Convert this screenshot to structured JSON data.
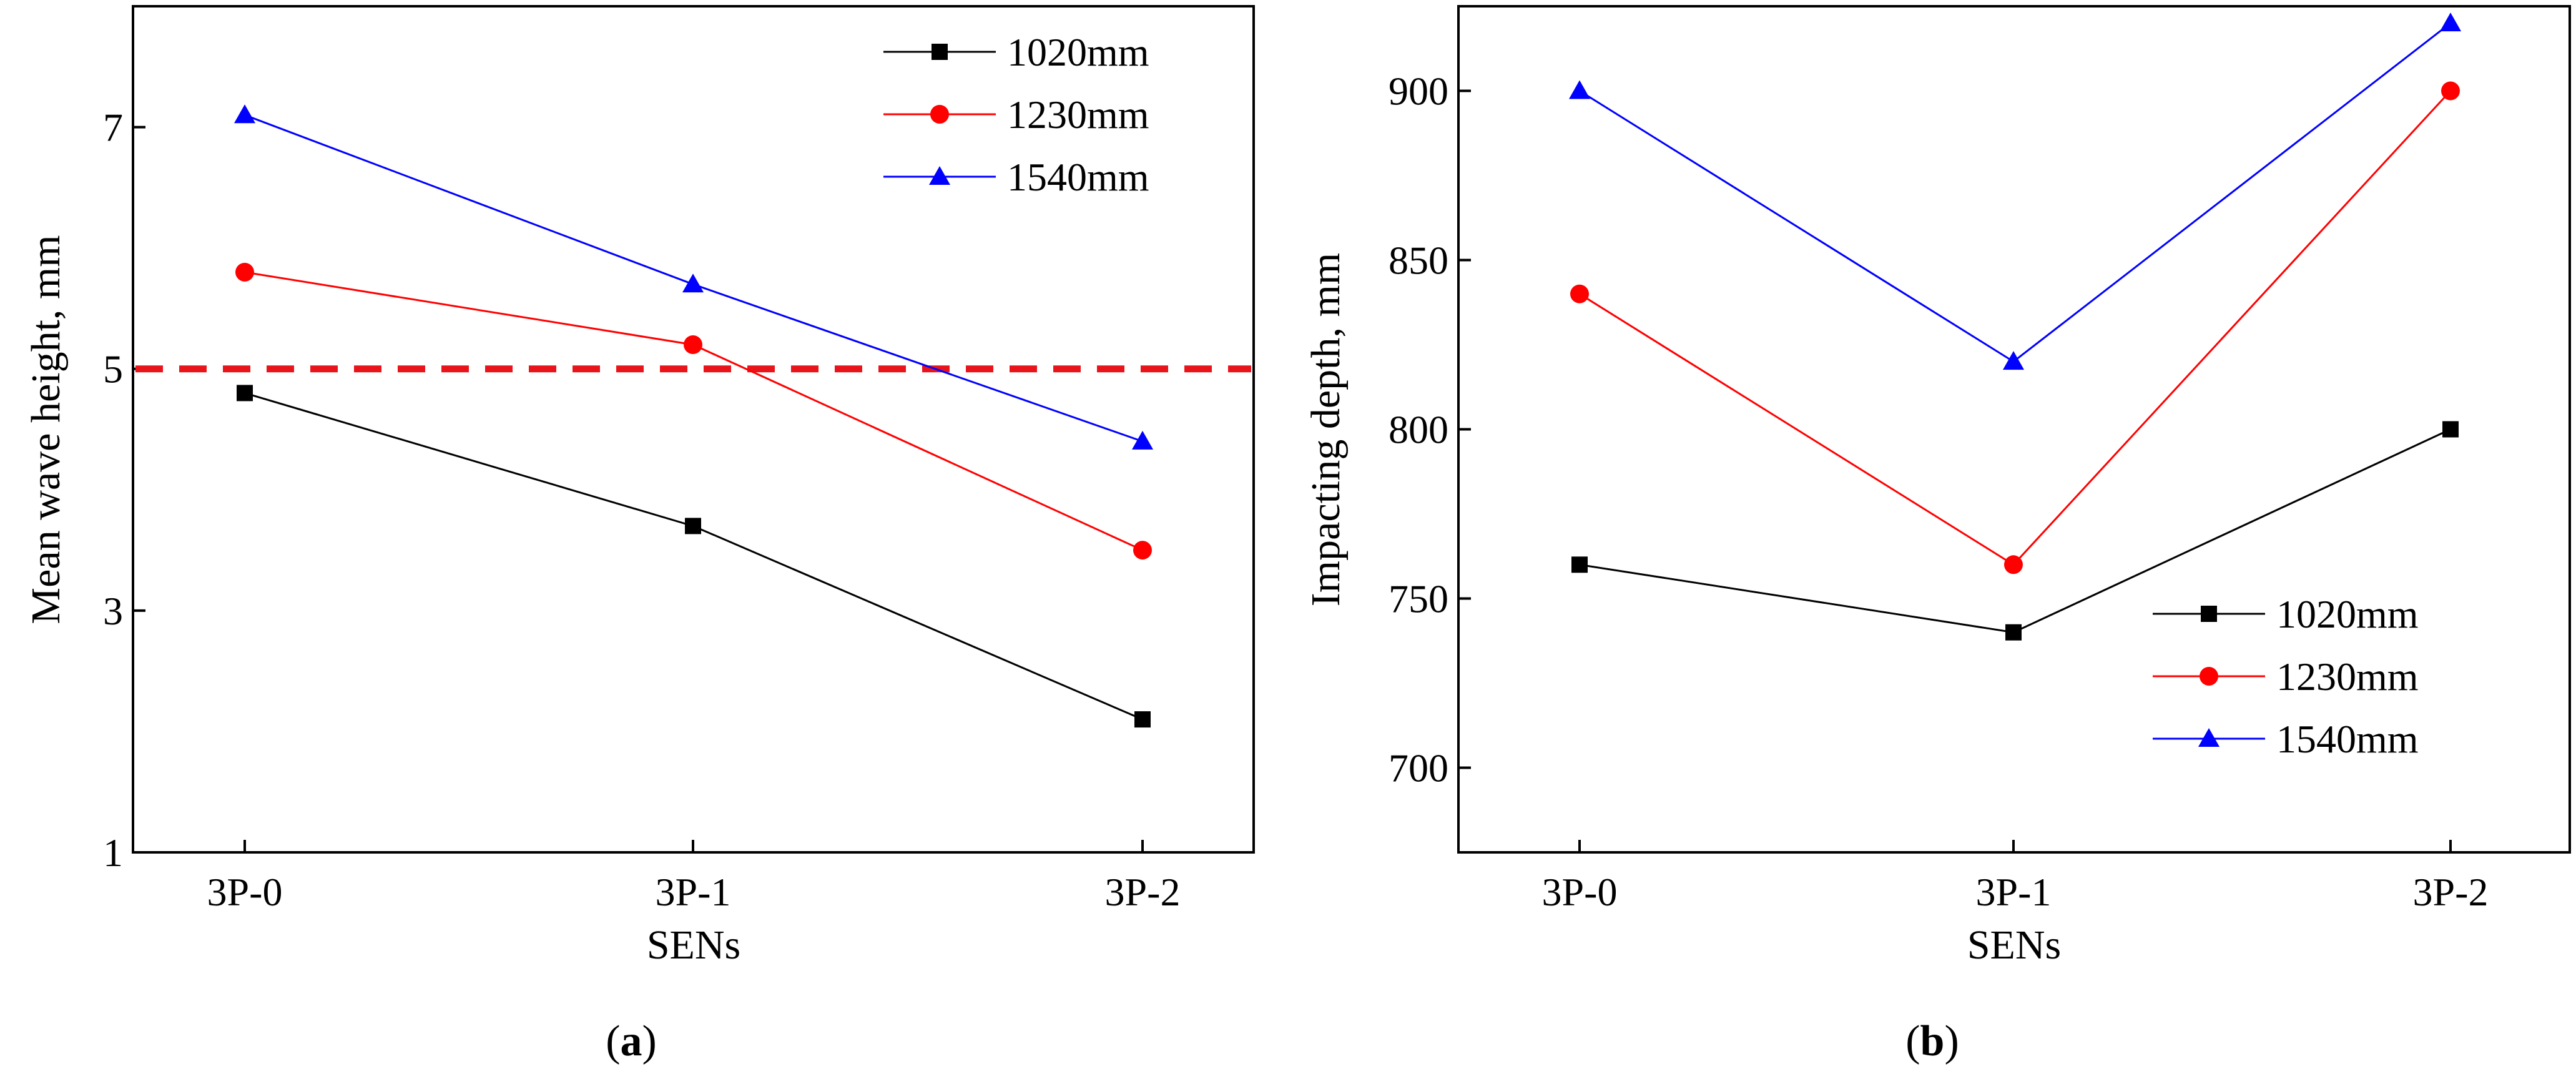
{
  "chart_data": [
    {
      "panel": "a",
      "type": "line",
      "xlabel": "SENs",
      "ylabel": "Mean wave height, mm",
      "categories": [
        "3P-0",
        "3P-1",
        "3P-2"
      ],
      "ylim": [
        1,
        8
      ],
      "yticks": [
        1,
        3,
        5,
        7
      ],
      "legend_position": "top-right",
      "reference_line": {
        "y": 5,
        "color": "#e8141a",
        "style": "dashed"
      },
      "series": [
        {
          "name": "1020mm",
          "color": "#000000",
          "marker": "square",
          "values": [
            4.8,
            3.7,
            2.1
          ]
        },
        {
          "name": "1230mm",
          "color": "#ff0000",
          "marker": "circle",
          "values": [
            5.8,
            5.2,
            3.5
          ]
        },
        {
          "name": "1540mm",
          "color": "#0000ff",
          "marker": "triangle",
          "values": [
            7.1,
            5.7,
            4.4
          ]
        }
      ]
    },
    {
      "panel": "b",
      "type": "line",
      "xlabel": "SENs",
      "ylabel": "Impacting depth, mm",
      "categories": [
        "3P-0",
        "3P-1",
        "3P-2"
      ],
      "ylim": [
        675,
        925
      ],
      "yticks": [
        700,
        750,
        800,
        850,
        900
      ],
      "legend_position": "bottom-right",
      "series": [
        {
          "name": "1020mm",
          "color": "#000000",
          "marker": "square",
          "values": [
            760,
            740,
            800
          ]
        },
        {
          "name": "1230mm",
          "color": "#ff0000",
          "marker": "circle",
          "values": [
            840,
            760,
            900
          ]
        },
        {
          "name": "1540mm",
          "color": "#0000ff",
          "marker": "triangle",
          "values": [
            900,
            820,
            920
          ]
        }
      ]
    }
  ],
  "panel_labels": [
    {
      "open": "(",
      "letter": "a",
      "close": ")"
    },
    {
      "open": "(",
      "letter": "b",
      "close": ")"
    }
  ]
}
